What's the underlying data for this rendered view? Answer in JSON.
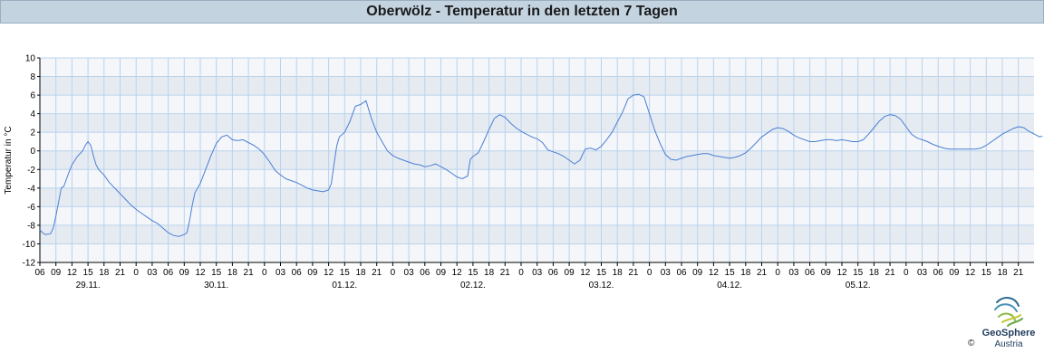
{
  "title": "Oberwölz - Temperatur in den letzten 7 Tagen",
  "logo": {
    "name": "GeoSphere",
    "sub": "Austria",
    "copyright": "©"
  },
  "colors": {
    "line": "#4a7fd4",
    "band": "#e6ebf2",
    "grid": "#b9d3ee",
    "title_bg": "#c4d3e0"
  },
  "chart_data": {
    "type": "line",
    "title": "Oberwölz - Temperatur in den letzten 7 Tagen",
    "ylabel": "Temperatur in °C",
    "xlabel": "",
    "ylim": [
      -12,
      10
    ],
    "yticks": [
      10,
      8,
      6,
      4,
      2,
      0,
      -2,
      -4,
      -6,
      -8,
      -10,
      -12
    ],
    "x_unit": "hours since 29.11. 00:00",
    "xlim": [
      6,
      189
    ],
    "hour_tick_labels": [
      "06",
      "09",
      "12",
      "15",
      "18",
      "21",
      "0",
      "03",
      "06",
      "09",
      "12",
      "15",
      "18",
      "21",
      "0",
      "03",
      "06",
      "09",
      "12",
      "15",
      "18",
      "21",
      "0",
      "03",
      "06",
      "09",
      "12",
      "15",
      "18",
      "21",
      "0",
      "03",
      "06",
      "09",
      "12",
      "15",
      "18",
      "21",
      "0",
      "03",
      "06",
      "09",
      "12",
      "15",
      "18",
      "21",
      "0",
      "03",
      "06",
      "09",
      "12",
      "15",
      "18",
      "21",
      "0",
      "03",
      "06",
      "09",
      "12",
      "15",
      "18",
      "21"
    ],
    "date_labels": [
      "29.11.",
      "30.11.",
      "01.12.",
      "02.12.",
      "03.12.",
      "04.12.",
      "05.12."
    ],
    "grid": true,
    "series": [
      {
        "points": [
          [
            6,
            -8.5
          ],
          [
            6.5,
            -8.8
          ],
          [
            7,
            -9.0
          ],
          [
            8,
            -8.9
          ],
          [
            8.5,
            -8.3
          ],
          [
            9,
            -7.0
          ],
          [
            9.5,
            -5.5
          ],
          [
            10,
            -4.0
          ],
          [
            10.5,
            -3.8
          ],
          [
            11,
            -3.0
          ],
          [
            11.5,
            -2.2
          ],
          [
            12,
            -1.5
          ],
          [
            13,
            -0.6
          ],
          [
            14,
            0.0
          ],
          [
            14.5,
            0.6
          ],
          [
            15,
            1.0
          ],
          [
            15.5,
            0.6
          ],
          [
            16,
            -0.5
          ],
          [
            16.5,
            -1.5
          ],
          [
            17,
            -2.0
          ],
          [
            18,
            -2.6
          ],
          [
            19,
            -3.4
          ],
          [
            20,
            -4.0
          ],
          [
            21,
            -4.6
          ],
          [
            22,
            -5.2
          ],
          [
            23,
            -5.8
          ],
          [
            24,
            -6.3
          ],
          [
            25,
            -6.7
          ],
          [
            26,
            -7.1
          ],
          [
            27,
            -7.5
          ],
          [
            28,
            -7.8
          ],
          [
            29,
            -8.3
          ],
          [
            30,
            -8.8
          ],
          [
            31,
            -9.1
          ],
          [
            32,
            -9.2
          ],
          [
            33,
            -9.0
          ],
          [
            33.5,
            -8.8
          ],
          [
            34,
            -7.5
          ],
          [
            34.5,
            -5.8
          ],
          [
            35,
            -4.5
          ],
          [
            36,
            -3.5
          ],
          [
            37,
            -2.0
          ],
          [
            38,
            -0.5
          ],
          [
            39,
            0.8
          ],
          [
            40,
            1.5
          ],
          [
            41,
            1.7
          ],
          [
            42,
            1.2
          ],
          [
            43,
            1.1
          ],
          [
            44,
            1.2
          ],
          [
            45,
            0.9
          ],
          [
            46,
            0.6
          ],
          [
            47,
            0.2
          ],
          [
            48,
            -0.4
          ],
          [
            49,
            -1.2
          ],
          [
            50,
            -2.1
          ],
          [
            51,
            -2.6
          ],
          [
            52,
            -3.0
          ],
          [
            53,
            -3.2
          ],
          [
            54,
            -3.4
          ],
          [
            55,
            -3.7
          ],
          [
            56,
            -4.0
          ],
          [
            57,
            -4.2
          ],
          [
            58,
            -4.3
          ],
          [
            59,
            -4.4
          ],
          [
            60,
            -4.2
          ],
          [
            60.5,
            -3.5
          ],
          [
            61,
            -1.5
          ],
          [
            61.5,
            0.5
          ],
          [
            62,
            1.5
          ],
          [
            63,
            2.0
          ],
          [
            64,
            3.2
          ],
          [
            65,
            4.8
          ],
          [
            66,
            5.0
          ],
          [
            67,
            5.4
          ],
          [
            68,
            3.5
          ],
          [
            69,
            2.0
          ],
          [
            70,
            1.0
          ],
          [
            71,
            0.0
          ],
          [
            72,
            -0.5
          ],
          [
            73,
            -0.8
          ],
          [
            74,
            -1.0
          ],
          [
            75,
            -1.2
          ],
          [
            76,
            -1.4
          ],
          [
            77,
            -1.5
          ],
          [
            78,
            -1.7
          ],
          [
            79,
            -1.6
          ],
          [
            80,
            -1.4
          ],
          [
            81,
            -1.7
          ],
          [
            82,
            -2.0
          ],
          [
            83,
            -2.4
          ],
          [
            84,
            -2.8
          ],
          [
            85,
            -3.0
          ],
          [
            86,
            -2.7
          ],
          [
            86.5,
            -0.9
          ],
          [
            87,
            -0.6
          ],
          [
            88,
            -0.2
          ],
          [
            89,
            1.0
          ],
          [
            90,
            2.3
          ],
          [
            91,
            3.5
          ],
          [
            92,
            3.9
          ],
          [
            93,
            3.6
          ],
          [
            94,
            3.0
          ],
          [
            95,
            2.5
          ],
          [
            96,
            2.1
          ],
          [
            97,
            1.8
          ],
          [
            98,
            1.5
          ],
          [
            99,
            1.3
          ],
          [
            100,
            0.9
          ],
          [
            101,
            0.1
          ],
          [
            102,
            -0.1
          ],
          [
            103,
            -0.3
          ],
          [
            104,
            -0.6
          ],
          [
            105,
            -1.0
          ],
          [
            106,
            -1.4
          ],
          [
            107,
            -1.0
          ],
          [
            108,
            0.2
          ],
          [
            109,
            0.3
          ],
          [
            110,
            0.1
          ],
          [
            111,
            0.5
          ],
          [
            112,
            1.2
          ],
          [
            113,
            2.0
          ],
          [
            114,
            3.1
          ],
          [
            115,
            4.2
          ],
          [
            116,
            5.6
          ],
          [
            117,
            6.0
          ],
          [
            118,
            6.1
          ],
          [
            119,
            5.8
          ],
          [
            120,
            4.0
          ],
          [
            121,
            2.2
          ],
          [
            122,
            0.8
          ],
          [
            123,
            -0.4
          ],
          [
            124,
            -0.9
          ],
          [
            125,
            -1.0
          ],
          [
            126,
            -0.8
          ],
          [
            127,
            -0.6
          ],
          [
            128,
            -0.5
          ],
          [
            129,
            -0.4
          ],
          [
            130,
            -0.3
          ],
          [
            131,
            -0.3
          ],
          [
            132,
            -0.5
          ],
          [
            133,
            -0.6
          ],
          [
            134,
            -0.7
          ],
          [
            135,
            -0.8
          ],
          [
            136,
            -0.7
          ],
          [
            137,
            -0.5
          ],
          [
            138,
            -0.2
          ],
          [
            139,
            0.3
          ],
          [
            140,
            0.9
          ],
          [
            141,
            1.5
          ],
          [
            142,
            1.9
          ],
          [
            143,
            2.3
          ],
          [
            144,
            2.5
          ],
          [
            145,
            2.4
          ],
          [
            146,
            2.1
          ],
          [
            147,
            1.7
          ],
          [
            148,
            1.4
          ],
          [
            149,
            1.2
          ],
          [
            150,
            1.0
          ],
          [
            151,
            1.0
          ],
          [
            152,
            1.1
          ],
          [
            153,
            1.2
          ],
          [
            154,
            1.2
          ],
          [
            155,
            1.1
          ],
          [
            156,
            1.2
          ],
          [
            157,
            1.1
          ],
          [
            158,
            1.0
          ],
          [
            159,
            1.0
          ],
          [
            160,
            1.2
          ],
          [
            161,
            1.8
          ],
          [
            162,
            2.5
          ],
          [
            163,
            3.2
          ],
          [
            164,
            3.7
          ],
          [
            165,
            3.9
          ],
          [
            166,
            3.8
          ],
          [
            167,
            3.4
          ],
          [
            168,
            2.6
          ],
          [
            169,
            1.8
          ],
          [
            170,
            1.4
          ],
          [
            171,
            1.2
          ],
          [
            172,
            1.0
          ],
          [
            173,
            0.7
          ],
          [
            174,
            0.5
          ],
          [
            175,
            0.3
          ],
          [
            176,
            0.2
          ],
          [
            177,
            0.2
          ],
          [
            178,
            0.2
          ],
          [
            179,
            0.2
          ],
          [
            180,
            0.2
          ],
          [
            181,
            0.2
          ],
          [
            182,
            0.3
          ],
          [
            183,
            0.6
          ],
          [
            184,
            1.0
          ],
          [
            185,
            1.4
          ],
          [
            186,
            1.8
          ],
          [
            187,
            2.1
          ],
          [
            188,
            2.4
          ],
          [
            189,
            2.6
          ],
          [
            190,
            2.5
          ],
          [
            191,
            2.1
          ],
          [
            192,
            1.8
          ],
          [
            193,
            1.5
          ],
          [
            193.5,
            1.6
          ]
        ]
      }
    ]
  }
}
